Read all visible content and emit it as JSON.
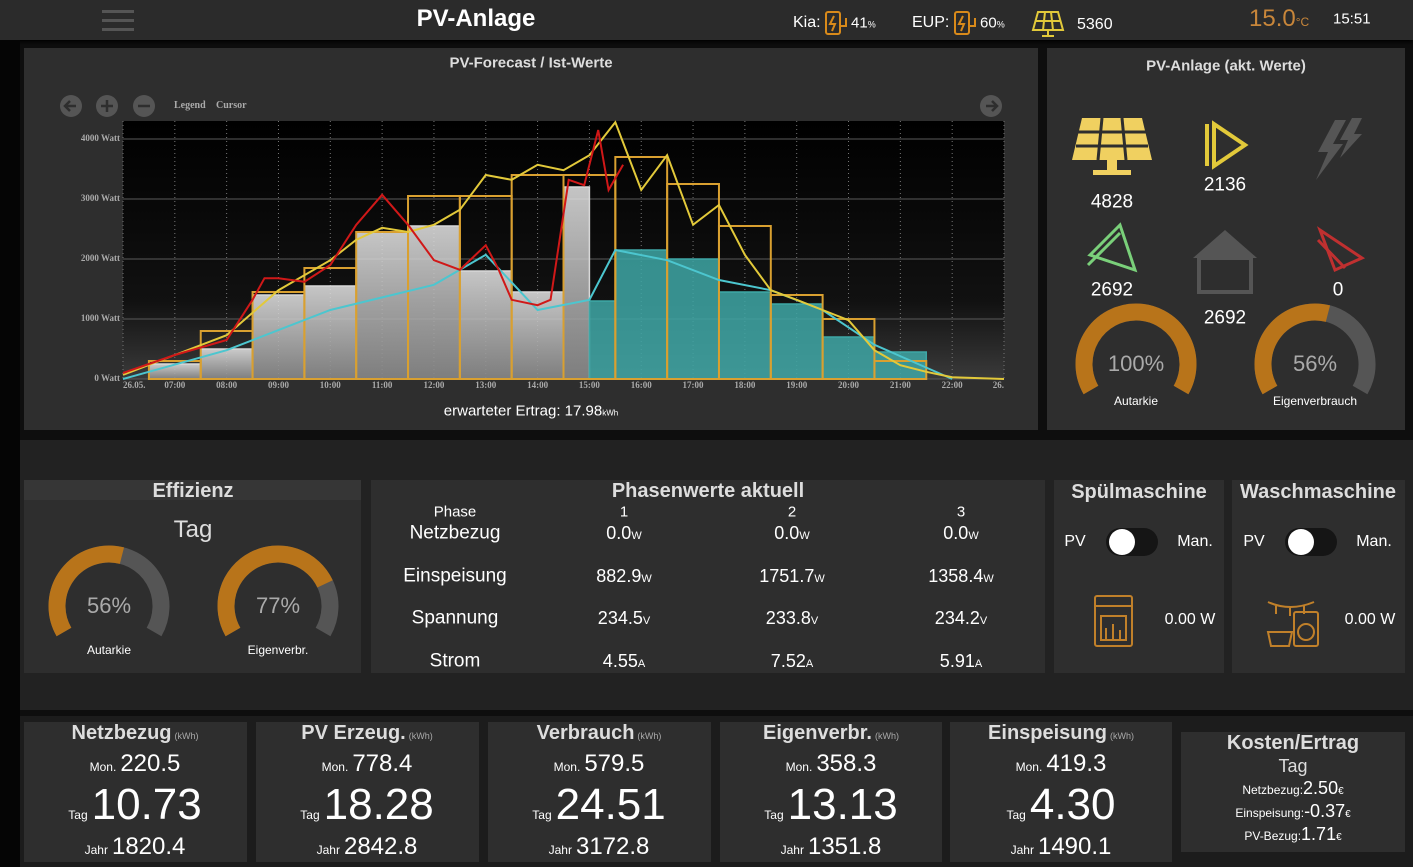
{
  "header": {
    "title": "PV-Anlage",
    "cars": [
      {
        "name": "Kia:",
        "value": "41",
        "unit": "%"
      },
      {
        "name": "EUP:",
        "value": "60",
        "unit": "%"
      }
    ],
    "pv_power": "5360",
    "temperature": "15.0",
    "temperature_unit": "°C",
    "time": "15:51"
  },
  "forecast": {
    "title": "PV-Forecast / Ist-Werte",
    "controls": [
      "Legend",
      "Cursor"
    ],
    "footer": "erwarteter Ertrag: 17.98",
    "footer_unit": "kWh",
    "chart_data": {
      "type": "combo",
      "ylim": [
        0,
        4300
      ],
      "xlim": [
        6,
        23
      ],
      "yticks": [
        {
          "value": 0,
          "label": "0 Watt"
        },
        {
          "value": 1000,
          "label": "1000 Watt"
        },
        {
          "value": 2000,
          "label": "2000 Watt"
        },
        {
          "value": 3000,
          "label": "3000 Watt"
        },
        {
          "value": 4000,
          "label": "4000 Watt"
        }
      ],
      "xticks": [
        {
          "value": 6,
          "label": "26.05."
        },
        {
          "value": 7,
          "label": "07:00"
        },
        {
          "value": 8,
          "label": "08:00"
        },
        {
          "value": 9,
          "label": "09:00"
        },
        {
          "value": 10,
          "label": "10:00"
        },
        {
          "value": 11,
          "label": "11:00"
        },
        {
          "value": 12,
          "label": "12:00"
        },
        {
          "value": 13,
          "label": "13:00"
        },
        {
          "value": 14,
          "label": "14:00"
        },
        {
          "value": 15,
          "label": "15:00"
        },
        {
          "value": 16,
          "label": "16:00"
        },
        {
          "value": 17,
          "label": "17:00"
        },
        {
          "value": 18,
          "label": "18:00"
        },
        {
          "value": 19,
          "label": "19:00"
        },
        {
          "value": 20,
          "label": "20:00"
        },
        {
          "value": 21,
          "label": "21:00"
        },
        {
          "value": 22,
          "label": "22:00"
        },
        {
          "value": 23,
          "label": "26."
        }
      ],
      "grid": true,
      "series": [
        {
          "type": "bar",
          "style": "filled",
          "color": "#d8d8d8",
          "bins": [
            6.5,
            7.5,
            8.5,
            9.5,
            10.5,
            11.5,
            12.5,
            13.5,
            14.5,
            15
          ],
          "values": [
            250,
            500,
            1400,
            1550,
            2450,
            2550,
            1800,
            1450,
            3200
          ]
        },
        {
          "type": "bar",
          "style": "filled",
          "color": "#3ea7a6",
          "bins": [
            15,
            15.5,
            16.5,
            17.5,
            18.5,
            19.5,
            20.5,
            21.5
          ],
          "values": [
            1300,
            2150,
            2000,
            1450,
            1250,
            700,
            450
          ]
        },
        {
          "type": "bar",
          "style": "outline",
          "color": "#d9a030",
          "bins": [
            6.5,
            7.5,
            8.5,
            9.5,
            10.5,
            11.5,
            12.5,
            13.5,
            14.5,
            15.5,
            16.5,
            17.5,
            18.5,
            19.5,
            20.5,
            21.5,
            22.5
          ],
          "values": [
            300,
            800,
            1450,
            1850,
            2450,
            3050,
            3050,
            3400,
            3400,
            3700,
            3250,
            2550,
            1400,
            1000,
            300,
            0
          ]
        },
        {
          "type": "line",
          "color": "#4cc6cf",
          "x": [
            6,
            8,
            10,
            12,
            13,
            14,
            15,
            15.5,
            16.5,
            17.5,
            18.5,
            19.5,
            20.5,
            22
          ],
          "values": [
            0,
            480,
            1150,
            1570,
            2070,
            1150,
            1320,
            2150,
            1980,
            1650,
            1480,
            1150,
            570,
            0
          ]
        },
        {
          "type": "line",
          "color": "#e2c93a",
          "x": [
            6,
            7,
            8,
            9,
            10,
            10.5,
            11,
            11.5,
            12,
            12.5,
            13,
            13.5,
            14,
            14.5,
            15,
            15.5,
            16,
            16.5,
            17,
            17.5,
            18,
            18.5,
            19,
            19.5,
            20,
            20.5,
            21,
            21.5,
            22,
            23
          ],
          "values": [
            70,
            400,
            730,
            1480,
            1980,
            2320,
            2520,
            2450,
            2570,
            2820,
            3400,
            3320,
            3570,
            3480,
            3730,
            4280,
            3150,
            3730,
            2570,
            2900,
            2070,
            1480,
            1320,
            1150,
            980,
            480,
            230,
            120,
            30,
            0
          ]
        },
        {
          "type": "line",
          "color": "#d01818",
          "x": [
            6,
            7,
            8,
            8.5,
            8.73,
            9,
            9.5,
            10,
            10.5,
            11,
            11.5,
            12,
            12.5,
            13,
            13.25,
            13.5,
            14,
            14.25,
            14.6,
            14.9,
            15.17,
            15.37,
            15.65
          ],
          "values": [
            100,
            400,
            650,
            1320,
            1680,
            1680,
            1620,
            1900,
            2570,
            3070,
            2570,
            1980,
            1820,
            2230,
            1820,
            1320,
            1230,
            1320,
            3320,
            3230,
            4150,
            3150,
            3570
          ]
        }
      ]
    }
  },
  "live": {
    "title": "PV-Anlage (akt. Werte)",
    "pv": "4828",
    "battery_out": "2136",
    "grid_feed": "2692",
    "house": "2692",
    "grid_draw": "0",
    "gauges": [
      {
        "value": 100,
        "label": "100%",
        "caption": "Autarkie"
      },
      {
        "value": 56,
        "label": "56%",
        "caption": "Eigenverbrauch"
      }
    ]
  },
  "efficiency": {
    "title": "Effizienz",
    "period": "Tag",
    "gauges": [
      {
        "value": 56,
        "label": "56%",
        "caption": "Autarkie"
      },
      {
        "value": 77,
        "label": "77%",
        "caption": "Eigenverbr."
      }
    ]
  },
  "phases": {
    "title": "Phasenwerte aktuell",
    "header": [
      "Phase",
      "1",
      "2",
      "3"
    ],
    "rows": [
      {
        "label": "Netzbezug",
        "cells": [
          {
            "value": "0.0",
            "unit": "W"
          },
          {
            "value": "0.0",
            "unit": "W"
          },
          {
            "value": "0.0",
            "unit": "W"
          }
        ]
      },
      {
        "label": "Einspeisung",
        "cells": [
          {
            "value": "882.9",
            "unit": "W"
          },
          {
            "value": "1751.7",
            "unit": "W"
          },
          {
            "value": "1358.4",
            "unit": "W"
          }
        ]
      },
      {
        "label": "Spannung",
        "cells": [
          {
            "value": "234.5",
            "unit": "V"
          },
          {
            "value": "233.8",
            "unit": "V"
          },
          {
            "value": "234.2",
            "unit": "V"
          }
        ]
      },
      {
        "label": "Strom",
        "cells": [
          {
            "value": "4.55",
            "unit": "A"
          },
          {
            "value": "7.52",
            "unit": "A"
          },
          {
            "value": "5.91",
            "unit": "A"
          }
        ]
      }
    ]
  },
  "appliances": [
    {
      "title": "Spülmaschine",
      "left": "PV",
      "right": "Man.",
      "power": "0.00 W"
    },
    {
      "title": "Waschmaschine",
      "left": "PV",
      "right": "Man.",
      "power": "0.00 W"
    }
  ],
  "totals": [
    {
      "title": "Netzbezug",
      "unit": "(kWh)",
      "rows": [
        {
          "label": "Mon.",
          "value": "220.5"
        },
        {
          "label": "Tag",
          "value": "10.73"
        },
        {
          "label": "Jahr",
          "value": "1820.4"
        }
      ]
    },
    {
      "title": "PV Erzeug.",
      "unit": "(kWh)",
      "rows": [
        {
          "label": "Mon.",
          "value": "778.4"
        },
        {
          "label": "Tag",
          "value": "18.28"
        },
        {
          "label": "Jahr",
          "value": "2842.8"
        }
      ]
    },
    {
      "title": "Verbrauch",
      "unit": "(kWh)",
      "rows": [
        {
          "label": "Mon.",
          "value": "579.5"
        },
        {
          "label": "Tag",
          "value": "24.51"
        },
        {
          "label": "Jahr",
          "value": "3172.8"
        }
      ]
    },
    {
      "title": "Eigenverbr.",
      "unit": "(kWh)",
      "rows": [
        {
          "label": "Mon.",
          "value": "358.3"
        },
        {
          "label": "Tag",
          "value": "13.13"
        },
        {
          "label": "Jahr",
          "value": "1351.8"
        }
      ]
    },
    {
      "title": "Einspeisung",
      "unit": "(kWh)",
      "rows": [
        {
          "label": "Mon.",
          "value": "419.3"
        },
        {
          "label": "Tag",
          "value": "4.30"
        },
        {
          "label": "Jahr",
          "value": "1490.1"
        }
      ]
    }
  ],
  "costs": {
    "title": "Kosten/Ertrag",
    "period": "Tag",
    "rows": [
      {
        "label": "Netzbezug:",
        "value": "2.50",
        "unit": "€"
      },
      {
        "label": "Einspeisung:",
        "value": "-0.37",
        "unit": "€"
      },
      {
        "label": "PV-Bezug:",
        "value": "1.71",
        "unit": "€"
      }
    ]
  }
}
